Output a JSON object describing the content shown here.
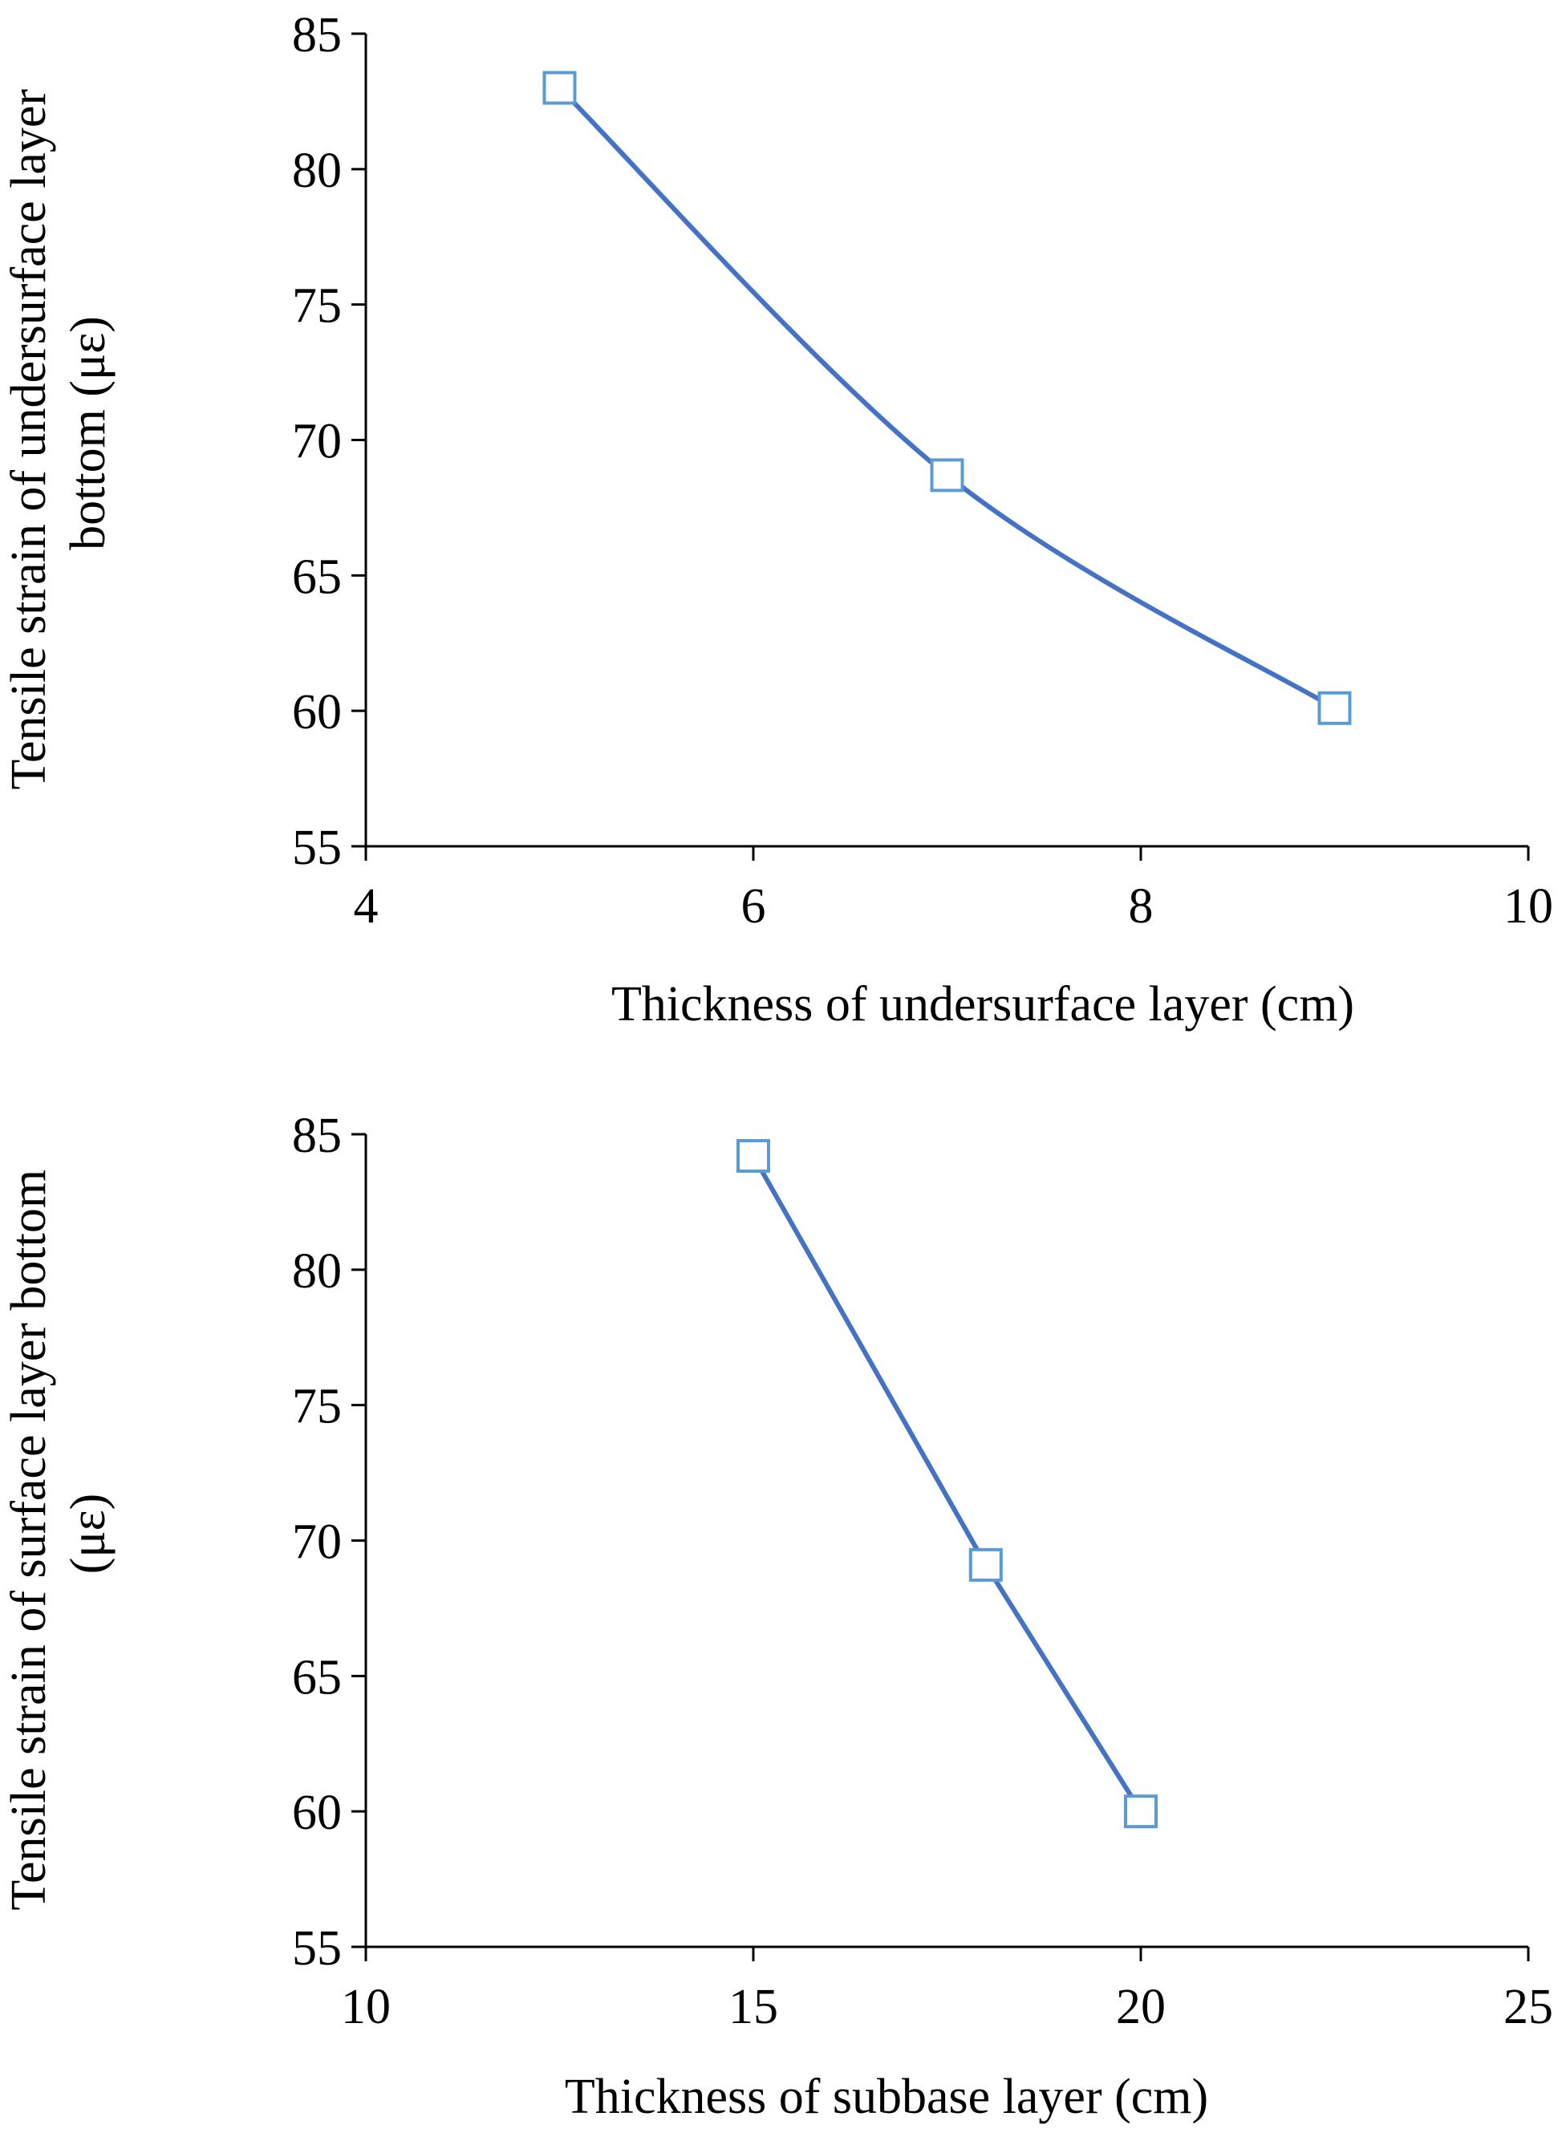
{
  "colors": {
    "series": "#4472C4",
    "marker": "#5B9BD5",
    "axis": "#000000"
  },
  "chart_data": [
    {
      "type": "line",
      "smooth": true,
      "title": "",
      "xlabel": "Thickness of undersurface layer (cm)",
      "ylabel": [
        "Tensile strain of undersurface layer",
        "bottom (με)"
      ],
      "xlim": [
        4,
        10
      ],
      "ylim": [
        55,
        85
      ],
      "xticks": [
        4,
        6,
        8,
        10
      ],
      "yticks": [
        55,
        60,
        65,
        70,
        75,
        80,
        85
      ],
      "series": [
        {
          "name": "",
          "x": [
            5,
            7,
            9
          ],
          "y": [
            83.0,
            68.7,
            60.1
          ],
          "marker": "open-square"
        }
      ],
      "grid": false,
      "legend": "none"
    },
    {
      "type": "line",
      "smooth": false,
      "title": "",
      "xlabel": "Thickness of subbase layer (cm)",
      "ylabel": [
        "Tensile strain of surface layer bottom",
        "(με)"
      ],
      "xlim": [
        10,
        25
      ],
      "ylim": [
        55,
        85
      ],
      "xticks": [
        10,
        15,
        20,
        25
      ],
      "yticks": [
        55,
        60,
        65,
        70,
        75,
        80,
        85
      ],
      "series": [
        {
          "name": "",
          "x": [
            15,
            18,
            20
          ],
          "y": [
            84.2,
            69.1,
            60.0
          ],
          "marker": "open-square"
        }
      ],
      "grid": false,
      "legend": "none"
    }
  ]
}
